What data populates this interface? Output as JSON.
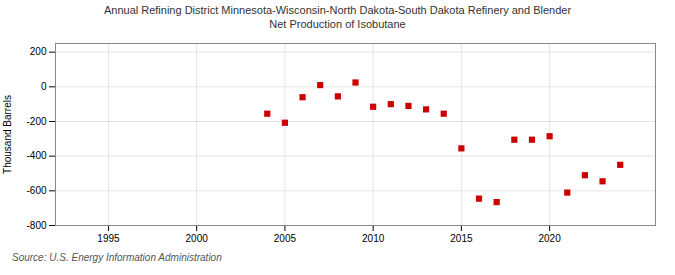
{
  "chart_data": {
    "type": "scatter",
    "title": "Annual Refining District Minnesota-Wisconsin-North Dakota-South Dakota Refinery and Blender\nNet Production of Isobutane",
    "ylabel": "Thousand Barrels",
    "caption": "Source: U.S. Energy Information Administration",
    "x": [
      2004,
      2005,
      2006,
      2007,
      2008,
      2009,
      2010,
      2011,
      2012,
      2013,
      2014,
      2015,
      2016,
      2017,
      2018,
      2019,
      2020,
      2021,
      2022,
      2023,
      2024
    ],
    "values": [
      -155,
      -207,
      -60,
      10,
      -55,
      25,
      -115,
      -100,
      -110,
      -130,
      -155,
      -355,
      -645,
      -665,
      -305,
      -305,
      -285,
      -610,
      -510,
      -545,
      -450
    ],
    "color": "#cc0000",
    "marker": "square",
    "xlim": [
      1992,
      2026
    ],
    "ylim": [
      -800,
      250
    ],
    "yticks": [
      -800,
      -600,
      -400,
      -200,
      0,
      200
    ],
    "xticks": [
      1995,
      2000,
      2005,
      2010,
      2015,
      2020
    ],
    "grid": true
  }
}
